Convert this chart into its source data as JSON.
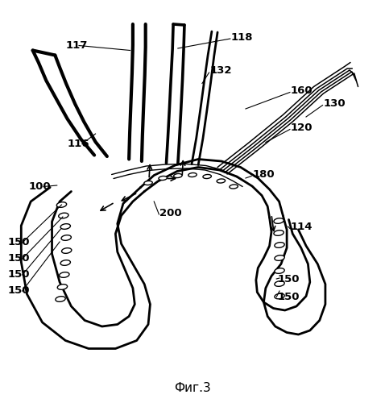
{
  "caption": "Фиг.3",
  "bg_color": "#ffffff",
  "figsize": [
    4.78,
    5.0
  ],
  "dpi": 100
}
